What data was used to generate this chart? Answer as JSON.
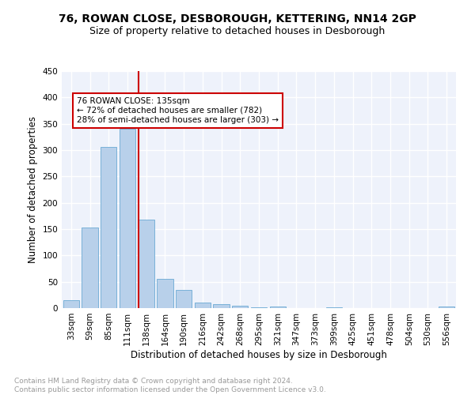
{
  "title1": "76, ROWAN CLOSE, DESBOROUGH, KETTERING, NN14 2GP",
  "title2": "Size of property relative to detached houses in Desborough",
  "xlabel": "Distribution of detached houses by size in Desborough",
  "ylabel": "Number of detached properties",
  "bar_labels": [
    "33sqm",
    "59sqm",
    "85sqm",
    "111sqm",
    "138sqm",
    "164sqm",
    "190sqm",
    "216sqm",
    "242sqm",
    "268sqm",
    "295sqm",
    "321sqm",
    "347sqm",
    "373sqm",
    "399sqm",
    "425sqm",
    "451sqm",
    "478sqm",
    "504sqm",
    "530sqm",
    "556sqm"
  ],
  "bar_values": [
    15,
    153,
    306,
    341,
    168,
    56,
    35,
    10,
    7,
    4,
    2,
    3,
    0,
    0,
    2,
    0,
    0,
    0,
    0,
    0,
    3
  ],
  "bar_color": "#b8d0ea",
  "bar_edge_color": "#6aaad4",
  "property_line_x": 3.575,
  "annotation_text": "76 ROWAN CLOSE: 135sqm\n← 72% of detached houses are smaller (782)\n28% of semi-detached houses are larger (303) →",
  "annotation_box_color": "#ffffff",
  "annotation_box_edge": "#cc0000",
  "vline_color": "#cc0000",
  "background_color": "#eef2fb",
  "grid_color": "#ffffff",
  "ylim": [
    0,
    450
  ],
  "footer_text": "Contains HM Land Registry data © Crown copyright and database right 2024.\nContains public sector information licensed under the Open Government Licence v3.0.",
  "title1_fontsize": 10,
  "title2_fontsize": 9,
  "xlabel_fontsize": 8.5,
  "ylabel_fontsize": 8.5,
  "tick_fontsize": 7.5,
  "footer_fontsize": 6.5,
  "annot_fontsize": 7.5
}
